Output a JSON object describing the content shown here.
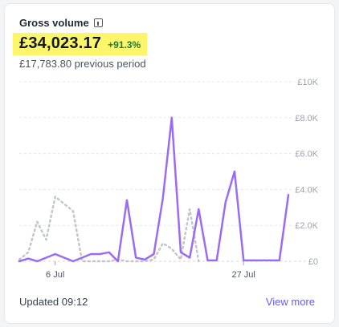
{
  "card": {
    "title": "Gross volume",
    "amount": "£34,023.17",
    "change": "+91.3%",
    "previous": "£17,783.80 previous period",
    "updated": "Updated 09:12",
    "view_more": "View more"
  },
  "icons": {
    "info": "info-icon"
  },
  "colors": {
    "current": "#9b6cf3",
    "previous": "#c3c6cd",
    "highlight": "#fdf66a",
    "change": "#1f7a3a",
    "link": "#635bff"
  },
  "chart_data": {
    "type": "line",
    "x_ticks": [
      "6 Jul",
      "27 Jul"
    ],
    "y_ticks": [
      "£0",
      "£2.0K",
      "£4.0K",
      "£6.0K",
      "£8.0K",
      "£10K"
    ],
    "ylim": [
      0,
      10000
    ],
    "grid": true,
    "series": [
      {
        "values": [
          0,
          150,
          0,
          200,
          400,
          200,
          0,
          200,
          400,
          400,
          500,
          0,
          3400,
          200,
          100,
          400,
          3500,
          8000,
          500,
          200,
          2900,
          50,
          50,
          3300,
          5000,
          50,
          50,
          50,
          50,
          50,
          3700
        ]
      },
      {
        "values": [
          100,
          500,
          2200,
          1200,
          3600,
          3200,
          2800,
          0,
          0,
          0,
          0,
          100,
          0,
          0,
          0,
          100,
          1000,
          700,
          100,
          2900,
          0,
          null,
          null,
          null,
          null,
          null,
          null,
          null,
          null,
          null,
          null
        ]
      }
    ]
  }
}
